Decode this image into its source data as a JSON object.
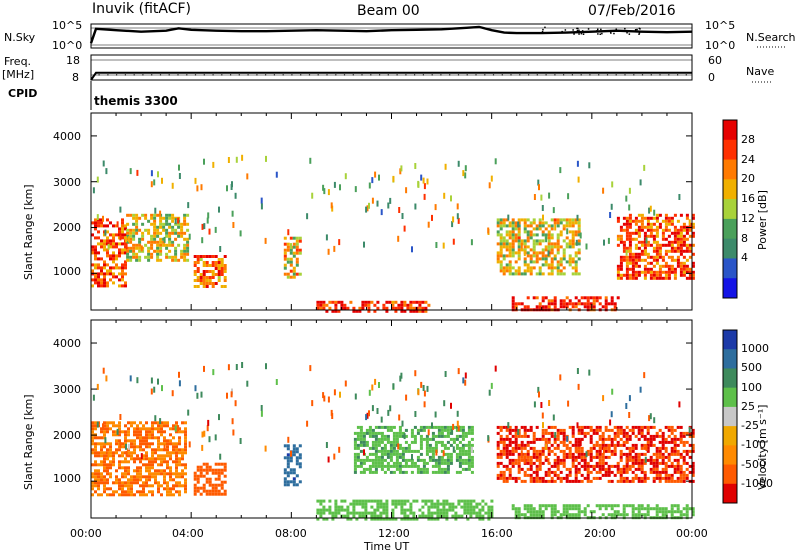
{
  "header": {
    "station": "Inuvik (fitACF)",
    "beam": "Beam 00",
    "date": "07/Feb/2016"
  },
  "noise_panel": {
    "left_label": "N.Sky",
    "right_label": "N.Search",
    "left_ticks": [
      "10^5",
      "10^0"
    ],
    "right_ticks": [
      "10^5",
      "10^0"
    ]
  },
  "freq_panel": {
    "left_label_1": "Freq.",
    "left_label_2": "[MHz]",
    "right_label": "Nave",
    "left_ticks": [
      "18",
      "8"
    ],
    "right_ticks": [
      "60",
      "0"
    ]
  },
  "cpid_panel": {
    "label": "CPID",
    "value": "themis 3300"
  },
  "power_panel": {
    "ylabel": "Slant Range [km]",
    "cbar_label": "Power [dB]",
    "cbar_ticks": [
      "28",
      "24",
      "20",
      "16",
      "12",
      "8",
      "4"
    ]
  },
  "velocity_panel": {
    "ylabel": "Slant Range [km]",
    "cbar_label": "Velocity  [m s⁻¹]",
    "cbar_ticks": [
      "1000",
      "500",
      "100",
      "25",
      "-25",
      "-100",
      "-500",
      "-1000"
    ]
  },
  "x_axis": {
    "label": "Time UT"
  },
  "chart_data": [
    {
      "type": "line",
      "panel": "noise",
      "x_unit": "hours UT",
      "x_range": [
        0,
        24
      ],
      "series": [
        {
          "name": "N.Sky",
          "x": [
            0,
            0.2,
            1,
            2,
            3,
            3.5,
            4,
            5,
            6,
            7,
            8,
            9,
            10,
            11,
            12,
            13,
            14,
            15,
            15.5,
            16,
            16.5,
            17,
            18,
            19,
            20,
            21,
            22,
            23,
            24
          ],
          "values": [
            1.0,
            4.0,
            3.7,
            3.4,
            3.6,
            4.1,
            3.8,
            3.6,
            3.5,
            3.5,
            3.6,
            3.7,
            3.6,
            3.5,
            3.7,
            3.8,
            3.9,
            4.2,
            4.4,
            3.7,
            3.2,
            3.1,
            3.1,
            3.2,
            3.4,
            3.6,
            3.4,
            3.3,
            3.4
          ]
        }
      ]
    },
    {
      "type": "line",
      "panel": "frequency",
      "x_range": [
        0,
        24
      ],
      "y_range": [
        8,
        18
      ],
      "series": [
        {
          "name": "Freq.",
          "x": [
            0,
            0.2,
            24
          ],
          "values": [
            8,
            10.9,
            10.9
          ]
        }
      ]
    },
    {
      "type": "heatmap",
      "panel": "power",
      "x_label": "Time UT",
      "y_label": "Slant Range [km]",
      "xlim": [
        0,
        24
      ],
      "ylim": [
        200,
        4500
      ],
      "y_ticks": [
        1000,
        2000,
        3000,
        4000
      ],
      "x_ticks": [
        "00:00",
        "04:00",
        "08:00",
        "12:00",
        "16:00",
        "20:00",
        "00:00"
      ],
      "colorbar": {
        "label": "Power [dB]",
        "range": [
          0,
          32
        ],
        "ticks": [
          4,
          8,
          12,
          16,
          20,
          24,
          28
        ]
      },
      "echo_regions": [
        {
          "t": [
            0.0,
            1.4
          ],
          "range": [
            700,
            2200
          ],
          "value": 26
        },
        {
          "t": [
            1.4,
            3.8
          ],
          "range": [
            1300,
            2300
          ],
          "value": 18
        },
        {
          "t": [
            4.1,
            5.3
          ],
          "range": [
            700,
            1400
          ],
          "value": 24
        },
        {
          "t": [
            7.7,
            8.3
          ],
          "range": [
            900,
            1800
          ],
          "value": 20
        },
        {
          "t": [
            9.0,
            13.5
          ],
          "range": [
            200,
            400
          ],
          "value": 28
        },
        {
          "t": [
            16.8,
            21.0
          ],
          "range": [
            200,
            500
          ],
          "value": 30
        },
        {
          "t": [
            16.2,
            19.5
          ],
          "range": [
            1000,
            2200
          ],
          "value": 18
        },
        {
          "t": [
            21.0,
            24.0
          ],
          "range": [
            900,
            2300
          ],
          "value": 26
        }
      ]
    },
    {
      "type": "heatmap",
      "panel": "velocity",
      "x_label": "Time UT",
      "y_label": "Slant Range [km]",
      "xlim": [
        0,
        24
      ],
      "ylim": [
        200,
        4500
      ],
      "y_ticks": [
        1000,
        2000,
        3000,
        4000
      ],
      "x_ticks": [
        "00:00",
        "04:00",
        "08:00",
        "12:00",
        "16:00",
        "20:00",
        "00:00"
      ],
      "colorbar": {
        "label": "Velocity  [m s⁻¹]",
        "ticks": [
          1000,
          500,
          100,
          25,
          -25,
          -100,
          -500,
          -1000
        ]
      },
      "echo_regions": [
        {
          "t": [
            0.0,
            3.8
          ],
          "range": [
            700,
            2300
          ],
          "value": -100
        },
        {
          "t": [
            4.1,
            5.3
          ],
          "range": [
            700,
            1400
          ],
          "value": -300
        },
        {
          "t": [
            7.7,
            8.3
          ],
          "range": [
            900,
            1800
          ],
          "value": 800
        },
        {
          "t": [
            10.5,
            15.2
          ],
          "range": [
            1200,
            2200
          ],
          "value": 80
        },
        {
          "t": [
            9.0,
            16.0
          ],
          "range": [
            200,
            600
          ],
          "value": 60
        },
        {
          "t": [
            16.2,
            24.0
          ],
          "range": [
            1000,
            2200
          ],
          "value": -500
        },
        {
          "t": [
            16.8,
            24.0
          ],
          "range": [
            200,
            500
          ],
          "value": 60
        }
      ]
    }
  ]
}
